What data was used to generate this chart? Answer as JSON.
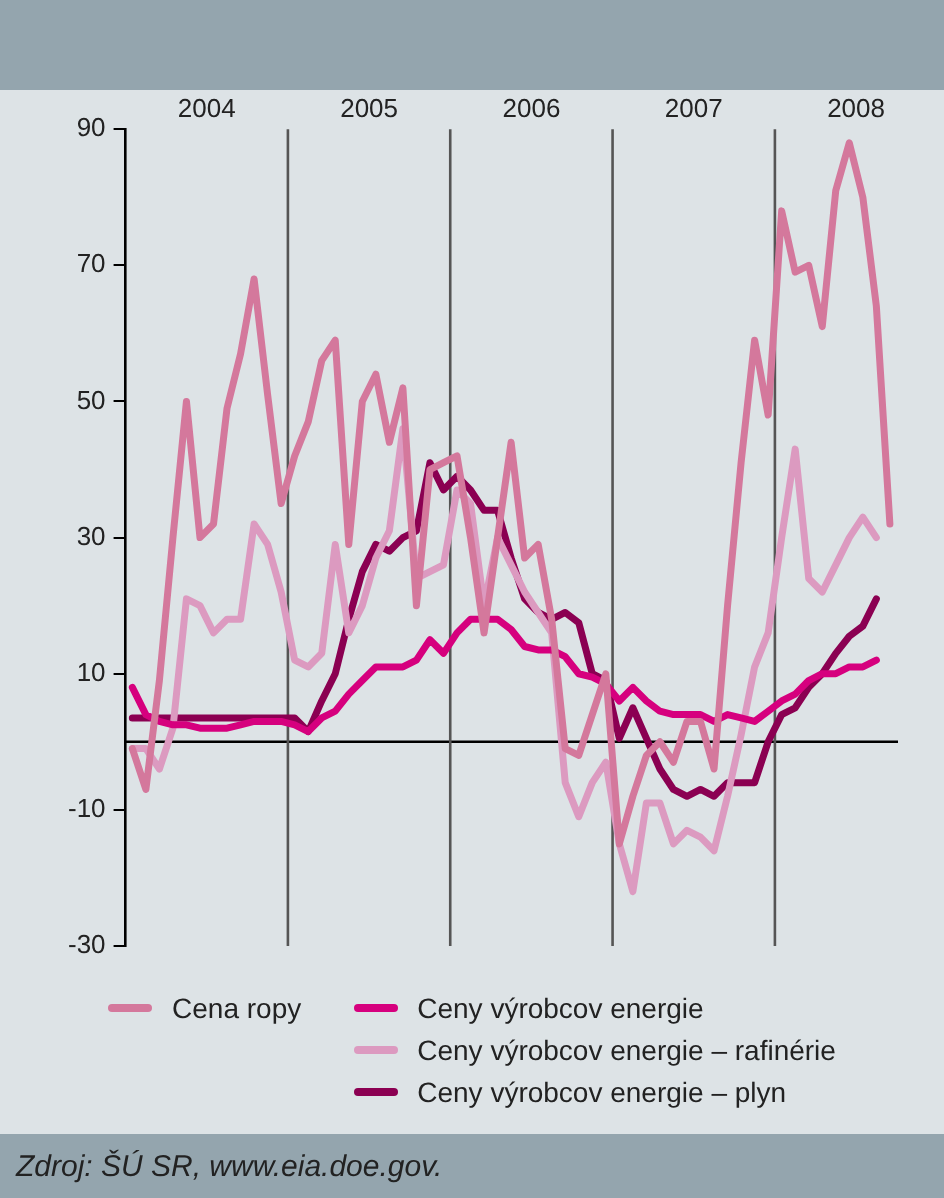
{
  "chart_data": {
    "type": "line",
    "x": [
      "2004-01",
      "2004-02",
      "2004-03",
      "2004-04",
      "2004-05",
      "2004-06",
      "2004-07",
      "2004-08",
      "2004-09",
      "2004-10",
      "2004-11",
      "2004-12",
      "2005-01",
      "2005-02",
      "2005-03",
      "2005-04",
      "2005-05",
      "2005-06",
      "2005-07",
      "2005-08",
      "2005-09",
      "2005-10",
      "2005-11",
      "2005-12",
      "2006-01",
      "2006-02",
      "2006-03",
      "2006-04",
      "2006-05",
      "2006-06",
      "2006-07",
      "2006-08",
      "2006-09",
      "2006-10",
      "2006-11",
      "2006-12",
      "2007-01",
      "2007-02",
      "2007-03",
      "2007-04",
      "2007-05",
      "2007-06",
      "2007-07",
      "2007-08",
      "2007-09",
      "2007-10",
      "2007-11",
      "2007-12",
      "2008-01",
      "2008-02",
      "2008-03",
      "2008-04",
      "2008-05",
      "2008-06",
      "2008-07",
      "2008-08",
      "2008-09"
    ],
    "series": [
      {
        "name": "Cena ropy",
        "color": "#d4789c",
        "values": [
          -1,
          -7,
          9,
          30,
          50,
          30,
          32,
          49,
          57,
          68,
          51,
          35,
          42,
          47,
          56,
          59,
          29,
          50,
          54,
          44,
          52,
          20,
          40,
          41,
          42,
          30,
          16,
          30,
          44,
          27,
          29,
          18,
          -1,
          -2,
          4,
          10,
          -15,
          -8,
          -2,
          0,
          -3,
          3,
          3,
          -4,
          20,
          41,
          59,
          48,
          78,
          69,
          70,
          61,
          81,
          88,
          80,
          64,
          32
        ]
      },
      {
        "name": "Ceny výrobcov energie",
        "color": "#d6007e",
        "values": [
          8,
          4,
          3,
          2.5,
          2.5,
          2,
          2,
          2,
          2.5,
          3,
          3,
          3,
          2.5,
          1.5,
          3.5,
          4.5,
          7,
          9,
          11,
          11,
          11,
          12,
          15,
          13,
          16,
          18,
          18,
          18,
          16.5,
          14,
          13.5,
          13.5,
          12.5,
          10,
          9.5,
          8.5,
          6,
          8,
          6,
          4.5,
          4,
          4,
          4,
          3,
          4,
          3.5,
          3,
          4.5,
          6,
          7,
          9,
          10,
          10,
          11,
          11,
          12,
          null
        ]
      },
      {
        "name": "Ceny výrobcov energie – rafinérie",
        "color": "#dc9ac0",
        "values": [
          -1,
          -1,
          -4,
          2,
          21,
          20,
          16,
          18,
          18,
          32,
          29,
          22,
          12,
          11,
          13,
          29,
          16,
          20,
          27,
          31,
          46,
          24,
          25,
          26,
          37,
          35,
          20,
          30,
          26,
          22,
          19,
          16,
          -6,
          -11,
          -6,
          -3,
          -15,
          -22,
          -9,
          -9,
          -15,
          -13,
          -14,
          -16,
          -8,
          1,
          11,
          16,
          30,
          43,
          24,
          22,
          26,
          30,
          33,
          30,
          null
        ]
      },
      {
        "name": "Ceny výrobcov energie – plyn",
        "color": "#8b0052",
        "values": [
          3.5,
          3.5,
          3.5,
          3.5,
          3.5,
          3.5,
          3.5,
          3.5,
          3.5,
          3.5,
          3.5,
          3.5,
          3.5,
          1.5,
          6,
          10,
          18,
          25,
          29,
          28,
          30,
          31,
          41,
          37,
          39,
          37,
          34,
          34,
          27,
          21,
          19,
          18,
          19,
          17.5,
          10,
          9,
          0.5,
          5,
          0.5,
          -4,
          -7,
          -8,
          -7,
          -8,
          -6,
          -6,
          -6,
          0,
          4,
          5,
          8,
          10,
          13,
          15.5,
          17,
          21,
          null
        ]
      }
    ],
    "xlim": [
      "2003-12-16",
      "2008-09-19"
    ],
    "xticks": [
      {
        "value": "2004-06-16",
        "label": "2004"
      },
      {
        "value": "2005-06-16",
        "label": "2005"
      },
      {
        "value": "2006-06-16",
        "label": "2006"
      },
      {
        "value": "2007-06-16",
        "label": "2007"
      },
      {
        "value": "2008-06-16",
        "label": "2008"
      }
    ],
    "ylim": [
      -30,
      90
    ],
    "yticks": [
      -30,
      -10,
      10,
      30,
      50,
      70,
      90
    ],
    "ref_lines": [
      {
        "axis": "y",
        "value": 0,
        "color": "#000000"
      },
      {
        "axis": "x",
        "value": "2004-12-16",
        "color": "#555555"
      },
      {
        "axis": "x",
        "value": "2005-12-16",
        "color": "#555555"
      },
      {
        "axis": "x",
        "value": "2006-12-16",
        "color": "#555555"
      },
      {
        "axis": "x",
        "value": "2007-12-16",
        "color": "#555555"
      }
    ],
    "grid": false,
    "legend": "bottom",
    "marker": "none",
    "line_style": "solid",
    "annotations": [
      "Zdroj: ŠÚ SR, www.eia.doe.gov."
    ]
  }
}
